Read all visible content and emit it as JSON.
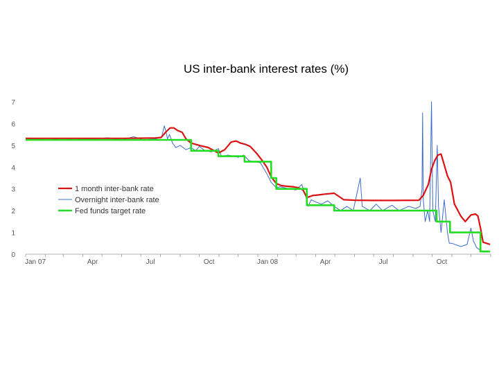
{
  "chart_data": {
    "type": "line",
    "title": "US inter-bank interest rates (%)",
    "xlabel": "",
    "ylabel": "",
    "xlim": [
      "2007-01-01",
      "2009-01-01"
    ],
    "ylim": [
      0,
      7
    ],
    "y_ticks": [
      0,
      1,
      2,
      3,
      4,
      5,
      6,
      7
    ],
    "x_ticks": [
      {
        "date": "2007-01-01",
        "label": "Jan 07"
      },
      {
        "date": "2007-04-01",
        "label": "Apr"
      },
      {
        "date": "2007-07-01",
        "label": "Jul"
      },
      {
        "date": "2007-10-01",
        "label": "Oct"
      },
      {
        "date": "2008-01-01",
        "label": "Jan 08"
      },
      {
        "date": "2008-04-01",
        "label": "Apr"
      },
      {
        "date": "2008-07-01",
        "label": "Jul"
      },
      {
        "date": "2008-10-01",
        "label": "Oct"
      }
    ],
    "grid": false,
    "legend_position": "center-left",
    "series": [
      {
        "name": "1 month inter-bank rate",
        "color": "#dd1111",
        "points": [
          [
            "2007-01-01",
            5.32
          ],
          [
            "2007-02-15",
            5.32
          ],
          [
            "2007-04-01",
            5.32
          ],
          [
            "2007-06-01",
            5.32
          ],
          [
            "2007-07-25",
            5.34
          ],
          [
            "2007-08-02",
            5.36
          ],
          [
            "2007-08-09",
            5.6
          ],
          [
            "2007-08-16",
            5.8
          ],
          [
            "2007-08-22",
            5.8
          ],
          [
            "2007-08-28",
            5.68
          ],
          [
            "2007-09-04",
            5.6
          ],
          [
            "2007-09-10",
            5.3
          ],
          [
            "2007-09-18",
            5.1
          ],
          [
            "2007-09-25",
            5.05
          ],
          [
            "2007-10-01",
            5.0
          ],
          [
            "2007-10-15",
            4.9
          ],
          [
            "2007-10-31",
            4.65
          ],
          [
            "2007-11-10",
            4.8
          ],
          [
            "2007-11-20",
            5.15
          ],
          [
            "2007-11-28",
            5.2
          ],
          [
            "2007-12-05",
            5.1
          ],
          [
            "2007-12-12",
            5.05
          ],
          [
            "2007-12-20",
            4.95
          ],
          [
            "2007-12-31",
            4.6
          ],
          [
            "2008-01-08",
            4.3
          ],
          [
            "2008-01-15",
            4.0
          ],
          [
            "2008-01-22",
            3.55
          ],
          [
            "2008-01-30",
            3.25
          ],
          [
            "2008-02-07",
            3.15
          ],
          [
            "2008-02-15",
            3.12
          ],
          [
            "2008-02-25",
            3.1
          ],
          [
            "2008-03-05",
            3.05
          ],
          [
            "2008-03-12",
            2.95
          ],
          [
            "2008-03-18",
            2.6
          ],
          [
            "2008-03-28",
            2.7
          ],
          [
            "2008-04-05",
            2.72
          ],
          [
            "2008-04-15",
            2.76
          ],
          [
            "2008-04-30",
            2.8
          ],
          [
            "2008-05-05",
            2.7
          ],
          [
            "2008-05-15",
            2.5
          ],
          [
            "2008-06-01",
            2.48
          ],
          [
            "2008-07-01",
            2.47
          ],
          [
            "2008-08-01",
            2.47
          ],
          [
            "2008-09-10",
            2.48
          ],
          [
            "2008-09-17",
            2.7
          ],
          [
            "2008-09-25",
            3.2
          ],
          [
            "2008-09-30",
            3.9
          ],
          [
            "2008-10-05",
            4.3
          ],
          [
            "2008-10-10",
            4.55
          ],
          [
            "2008-10-15",
            4.6
          ],
          [
            "2008-10-20",
            4.1
          ],
          [
            "2008-10-25",
            3.6
          ],
          [
            "2008-10-30",
            3.3
          ],
          [
            "2008-11-05",
            2.3
          ],
          [
            "2008-11-15",
            1.75
          ],
          [
            "2008-11-22",
            1.5
          ],
          [
            "2008-12-01",
            1.8
          ],
          [
            "2008-12-08",
            1.85
          ],
          [
            "2008-12-12",
            1.75
          ],
          [
            "2008-12-16",
            1.2
          ],
          [
            "2008-12-20",
            0.55
          ],
          [
            "2008-12-31",
            0.45
          ]
        ]
      },
      {
        "name": "Overnight inter-bank rate",
        "color": "#3a6cc8",
        "points": [
          [
            "2007-01-01",
            5.3
          ],
          [
            "2007-01-20",
            5.28
          ],
          [
            "2007-02-05",
            5.33
          ],
          [
            "2007-03-01",
            5.25
          ],
          [
            "2007-03-20",
            5.32
          ],
          [
            "2007-04-15",
            5.28
          ],
          [
            "2007-05-10",
            5.35
          ],
          [
            "2007-06-01",
            5.25
          ],
          [
            "2007-06-20",
            5.4
          ],
          [
            "2007-07-05",
            5.25
          ],
          [
            "2007-07-25",
            5.3
          ],
          [
            "2007-08-03",
            5.4
          ],
          [
            "2007-08-07",
            5.9
          ],
          [
            "2007-08-09",
            5.7
          ],
          [
            "2007-08-12",
            5.3
          ],
          [
            "2007-08-15",
            5.5
          ],
          [
            "2007-08-20",
            5.1
          ],
          [
            "2007-08-25",
            4.9
          ],
          [
            "2007-09-01",
            5.0
          ],
          [
            "2007-09-10",
            4.8
          ],
          [
            "2007-09-18",
            4.9
          ],
          [
            "2007-09-25",
            4.75
          ],
          [
            "2007-10-01",
            4.95
          ],
          [
            "2007-10-10",
            4.75
          ],
          [
            "2007-10-20",
            4.7
          ],
          [
            "2007-10-31",
            4.85
          ],
          [
            "2007-11-05",
            4.5
          ],
          [
            "2007-11-15",
            4.55
          ],
          [
            "2007-11-25",
            4.5
          ],
          [
            "2007-12-01",
            4.45
          ],
          [
            "2007-12-10",
            4.55
          ],
          [
            "2007-12-18",
            4.3
          ],
          [
            "2007-12-26",
            4.25
          ],
          [
            "2008-01-05",
            4.2
          ],
          [
            "2008-01-15",
            3.7
          ],
          [
            "2008-01-22",
            3.3
          ],
          [
            "2008-01-30",
            3.05
          ],
          [
            "2008-02-05",
            3.1
          ],
          [
            "2008-02-20",
            3.0
          ],
          [
            "2008-03-01",
            2.95
          ],
          [
            "2008-03-10",
            3.2
          ],
          [
            "2008-03-17",
            2.6
          ],
          [
            "2008-03-20",
            2.2
          ],
          [
            "2008-03-25",
            2.5
          ],
          [
            "2008-04-01",
            2.4
          ],
          [
            "2008-04-10",
            2.3
          ],
          [
            "2008-04-20",
            2.45
          ],
          [
            "2008-04-30",
            2.2
          ],
          [
            "2008-05-10",
            2.0
          ],
          [
            "2008-05-20",
            2.2
          ],
          [
            "2008-05-30",
            2.0
          ],
          [
            "2008-06-10",
            3.5
          ],
          [
            "2008-06-13",
            2.2
          ],
          [
            "2008-06-25",
            2.0
          ],
          [
            "2008-07-05",
            2.3
          ],
          [
            "2008-07-15",
            2.0
          ],
          [
            "2008-07-30",
            2.25
          ],
          [
            "2008-08-10",
            2.0
          ],
          [
            "2008-08-25",
            2.2
          ],
          [
            "2008-09-05",
            2.1
          ],
          [
            "2008-09-12",
            2.2
          ],
          [
            "2008-09-15",
            3.0
          ],
          [
            "2008-09-16",
            6.5
          ],
          [
            "2008-09-17",
            2.5
          ],
          [
            "2008-09-20",
            1.5
          ],
          [
            "2008-09-24",
            2.0
          ],
          [
            "2008-09-27",
            1.5
          ],
          [
            "2008-09-30",
            7.0
          ],
          [
            "2008-10-02",
            2.0
          ],
          [
            "2008-10-06",
            1.5
          ],
          [
            "2008-10-09",
            5.0
          ],
          [
            "2008-10-11",
            2.2
          ],
          [
            "2008-10-15",
            1.0
          ],
          [
            "2008-10-20",
            2.5
          ],
          [
            "2008-10-25",
            1.0
          ],
          [
            "2008-10-28",
            0.5
          ],
          [
            "2008-11-01",
            0.5
          ],
          [
            "2008-11-15",
            0.35
          ],
          [
            "2008-11-25",
            0.45
          ],
          [
            "2008-12-01",
            1.2
          ],
          [
            "2008-12-05",
            0.6
          ],
          [
            "2008-12-10",
            0.3
          ],
          [
            "2008-12-20",
            0.1
          ],
          [
            "2008-12-31",
            0.1
          ]
        ]
      },
      {
        "name": "Fed funds target rate",
        "color": "#22dd22",
        "step": true,
        "points": [
          [
            "2007-01-01",
            5.25
          ],
          [
            "2007-09-18",
            4.75
          ],
          [
            "2007-10-31",
            4.5
          ],
          [
            "2007-12-11",
            4.25
          ],
          [
            "2008-01-22",
            3.5
          ],
          [
            "2008-01-30",
            3.0
          ],
          [
            "2008-03-18",
            2.25
          ],
          [
            "2008-04-30",
            2.0
          ],
          [
            "2008-10-08",
            1.5
          ],
          [
            "2008-10-29",
            1.0
          ],
          [
            "2008-12-16",
            0.125
          ],
          [
            "2008-12-31",
            0.125
          ]
        ]
      }
    ]
  }
}
